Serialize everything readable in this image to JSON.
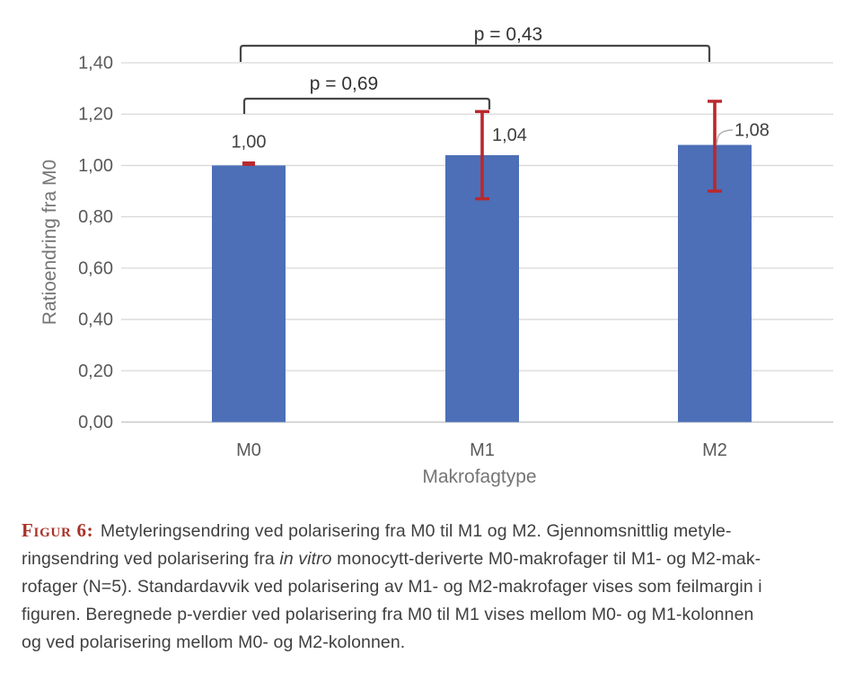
{
  "colors": {
    "background": "#ffffff",
    "bar_fill": "#4c6fb7",
    "error_bar": "#b9282d",
    "gridline": "#d9d9d9",
    "baseline": "#c8c8c8",
    "tick_label": "#595959",
    "axis_title": "#757575",
    "data_label": "#3f3f3f",
    "bracket": "#464646",
    "p_label": "#333333",
    "leader_line": "#b0b0b0",
    "caption_text": "#3f3f3f",
    "figure_label": "#a93228"
  },
  "chart_data": {
    "type": "bar",
    "title": "",
    "categories": [
      "M0",
      "M1",
      "M2"
    ],
    "values": [
      1.0,
      1.04,
      1.08
    ],
    "value_labels": [
      "1,00",
      "1,04",
      "1,08"
    ],
    "error_bars": [
      {
        "low": 0.99,
        "high": 1.01
      },
      {
        "low": 0.87,
        "high": 1.21
      },
      {
        "low": 0.9,
        "high": 1.25
      }
    ],
    "xlabel": "Makrofagtype",
    "ylabel": "Ratioendring fra M0",
    "ylim": [
      0,
      1.4
    ],
    "ytick_step": 0.2,
    "ytick_labels": [
      "0,00",
      "0,20",
      "0,40",
      "0,60",
      "0,80",
      "1,00",
      "1,20",
      "1,40"
    ],
    "grid": true,
    "legend": "none",
    "annotations": [
      {
        "type": "bracket",
        "from": "M0",
        "to": "M1",
        "label": "p = 0,69"
      },
      {
        "type": "bracket",
        "from": "M0",
        "to": "M2",
        "label": "p = 0,43"
      }
    ]
  },
  "caption": {
    "label": "Figur 6:",
    "lines": [
      [
        {
          "label": true,
          "text": "Figur 6:"
        },
        {
          "text": " Metyleringsendring ved polarisering fra M0 til M1 og M2. Gjennomsnittlig metyle-"
        }
      ],
      [
        {
          "text": "ringsendring ved polarisering fra "
        },
        {
          "text": "in vitro",
          "italic": true
        },
        {
          "text": " monocytt-deriverte M0-makrofager til M1- og M2-mak-"
        }
      ],
      [
        {
          "text": "rofager (N=5). Standardavvik ved polarisering av M1- og M2-makrofager vises som feilmargin i"
        }
      ],
      [
        {
          "text": "figuren. Beregnede p-verdier ved polarisering fra M0 til M1 vises mellom M0- og M1-kolonnen"
        }
      ],
      [
        {
          "text": "og ved polarisering mellom M0- og M2-kolonnen."
        }
      ]
    ]
  }
}
